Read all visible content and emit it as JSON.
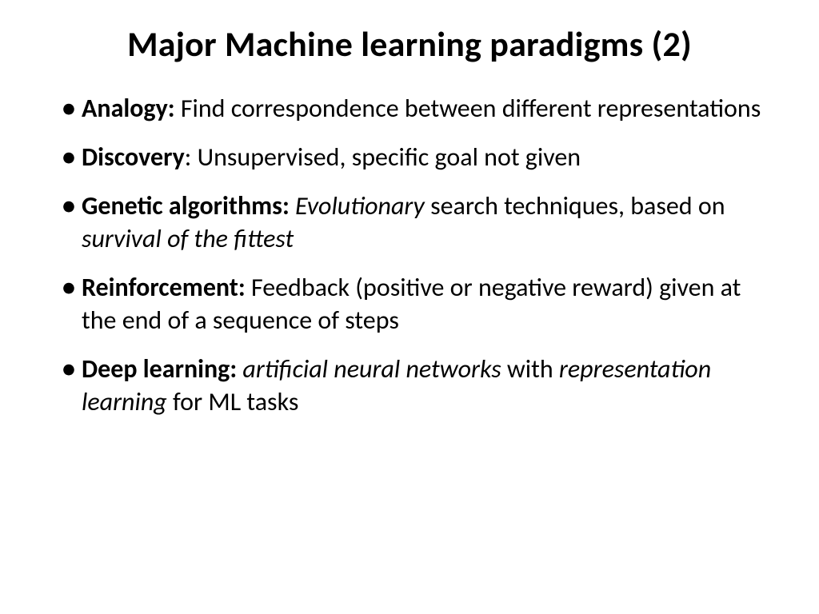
{
  "slide": {
    "title": "Major Machine learning paradigms (2)",
    "title_fontsize": 44,
    "body_fontsize": 32,
    "background_color": "#ffffff",
    "text_color": "#000000",
    "font_family": "Calibri",
    "bullets": [
      {
        "term": "Analogy:",
        "runs": [
          {
            "text": " Find correspondence between different representations",
            "italic": false
          }
        ]
      },
      {
        "term": "Discovery",
        "runs": [
          {
            "text": ": Unsupervised, specific goal not given",
            "italic": false
          }
        ]
      },
      {
        "term": "Genetic algorithms:",
        "runs": [
          {
            "text": " ",
            "italic": false
          },
          {
            "text": "Evolutionary",
            "italic": true
          },
          {
            "text": " search techniques, based on ",
            "italic": false
          },
          {
            "text": "survival of the fittest",
            "italic": true
          }
        ]
      },
      {
        "term": "Reinforcement:",
        "runs": [
          {
            "text": " Feedback (positive or negative reward) given at the end of a sequence of steps",
            "italic": false
          }
        ]
      },
      {
        "term": "Deep learning:",
        "runs": [
          {
            "text": " ",
            "italic": false
          },
          {
            "text": "artificial neural networks",
            "italic": true
          },
          {
            "text": " with ",
            "italic": false
          },
          {
            "text": "representation learning",
            "italic": true
          },
          {
            "text": " for ML tasks",
            "italic": false
          }
        ]
      }
    ]
  }
}
